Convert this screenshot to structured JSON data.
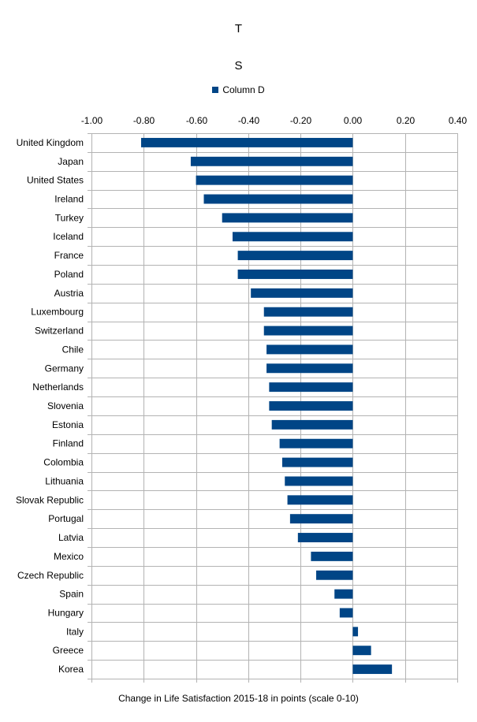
{
  "chart_data": {
    "type": "bar",
    "orientation": "horizontal",
    "title": "T",
    "subtitle": "S",
    "xlabel": "Change in Life Satisfaction 2015-18 in points (scale 0-10)",
    "ylabel": "",
    "xlim": [
      -1.0,
      0.4
    ],
    "xticks": [
      "-1.00",
      "-0.80",
      "-0.60",
      "-0.40",
      "-0.20",
      "0.00",
      "0.20",
      "0.40"
    ],
    "grid": true,
    "legend_position": "top",
    "bar_color": "#004586",
    "categories": [
      "United Kingdom",
      "Japan",
      "United States",
      "Ireland",
      "Turkey",
      "Iceland",
      "France",
      "Poland",
      "Austria",
      "Luxembourg",
      "Switzerland",
      "Chile",
      "Germany",
      "Netherlands",
      "Slovenia",
      "Estonia",
      "Finland",
      "Colombia",
      "Lithuania",
      "Slovak Republic",
      "Portugal",
      "Latvia",
      "Mexico",
      "Czech Republic",
      "Spain",
      "Hungary",
      "Italy",
      "Greece",
      "Korea"
    ],
    "series": [
      {
        "name": "Column D",
        "values": [
          -0.81,
          -0.62,
          -0.6,
          -0.57,
          -0.5,
          -0.46,
          -0.44,
          -0.44,
          -0.39,
          -0.34,
          -0.34,
          -0.33,
          -0.33,
          -0.32,
          -0.32,
          -0.31,
          -0.28,
          -0.27,
          -0.26,
          -0.25,
          -0.24,
          -0.21,
          -0.16,
          -0.14,
          -0.07,
          -0.05,
          0.02,
          0.07,
          0.15
        ]
      }
    ]
  }
}
